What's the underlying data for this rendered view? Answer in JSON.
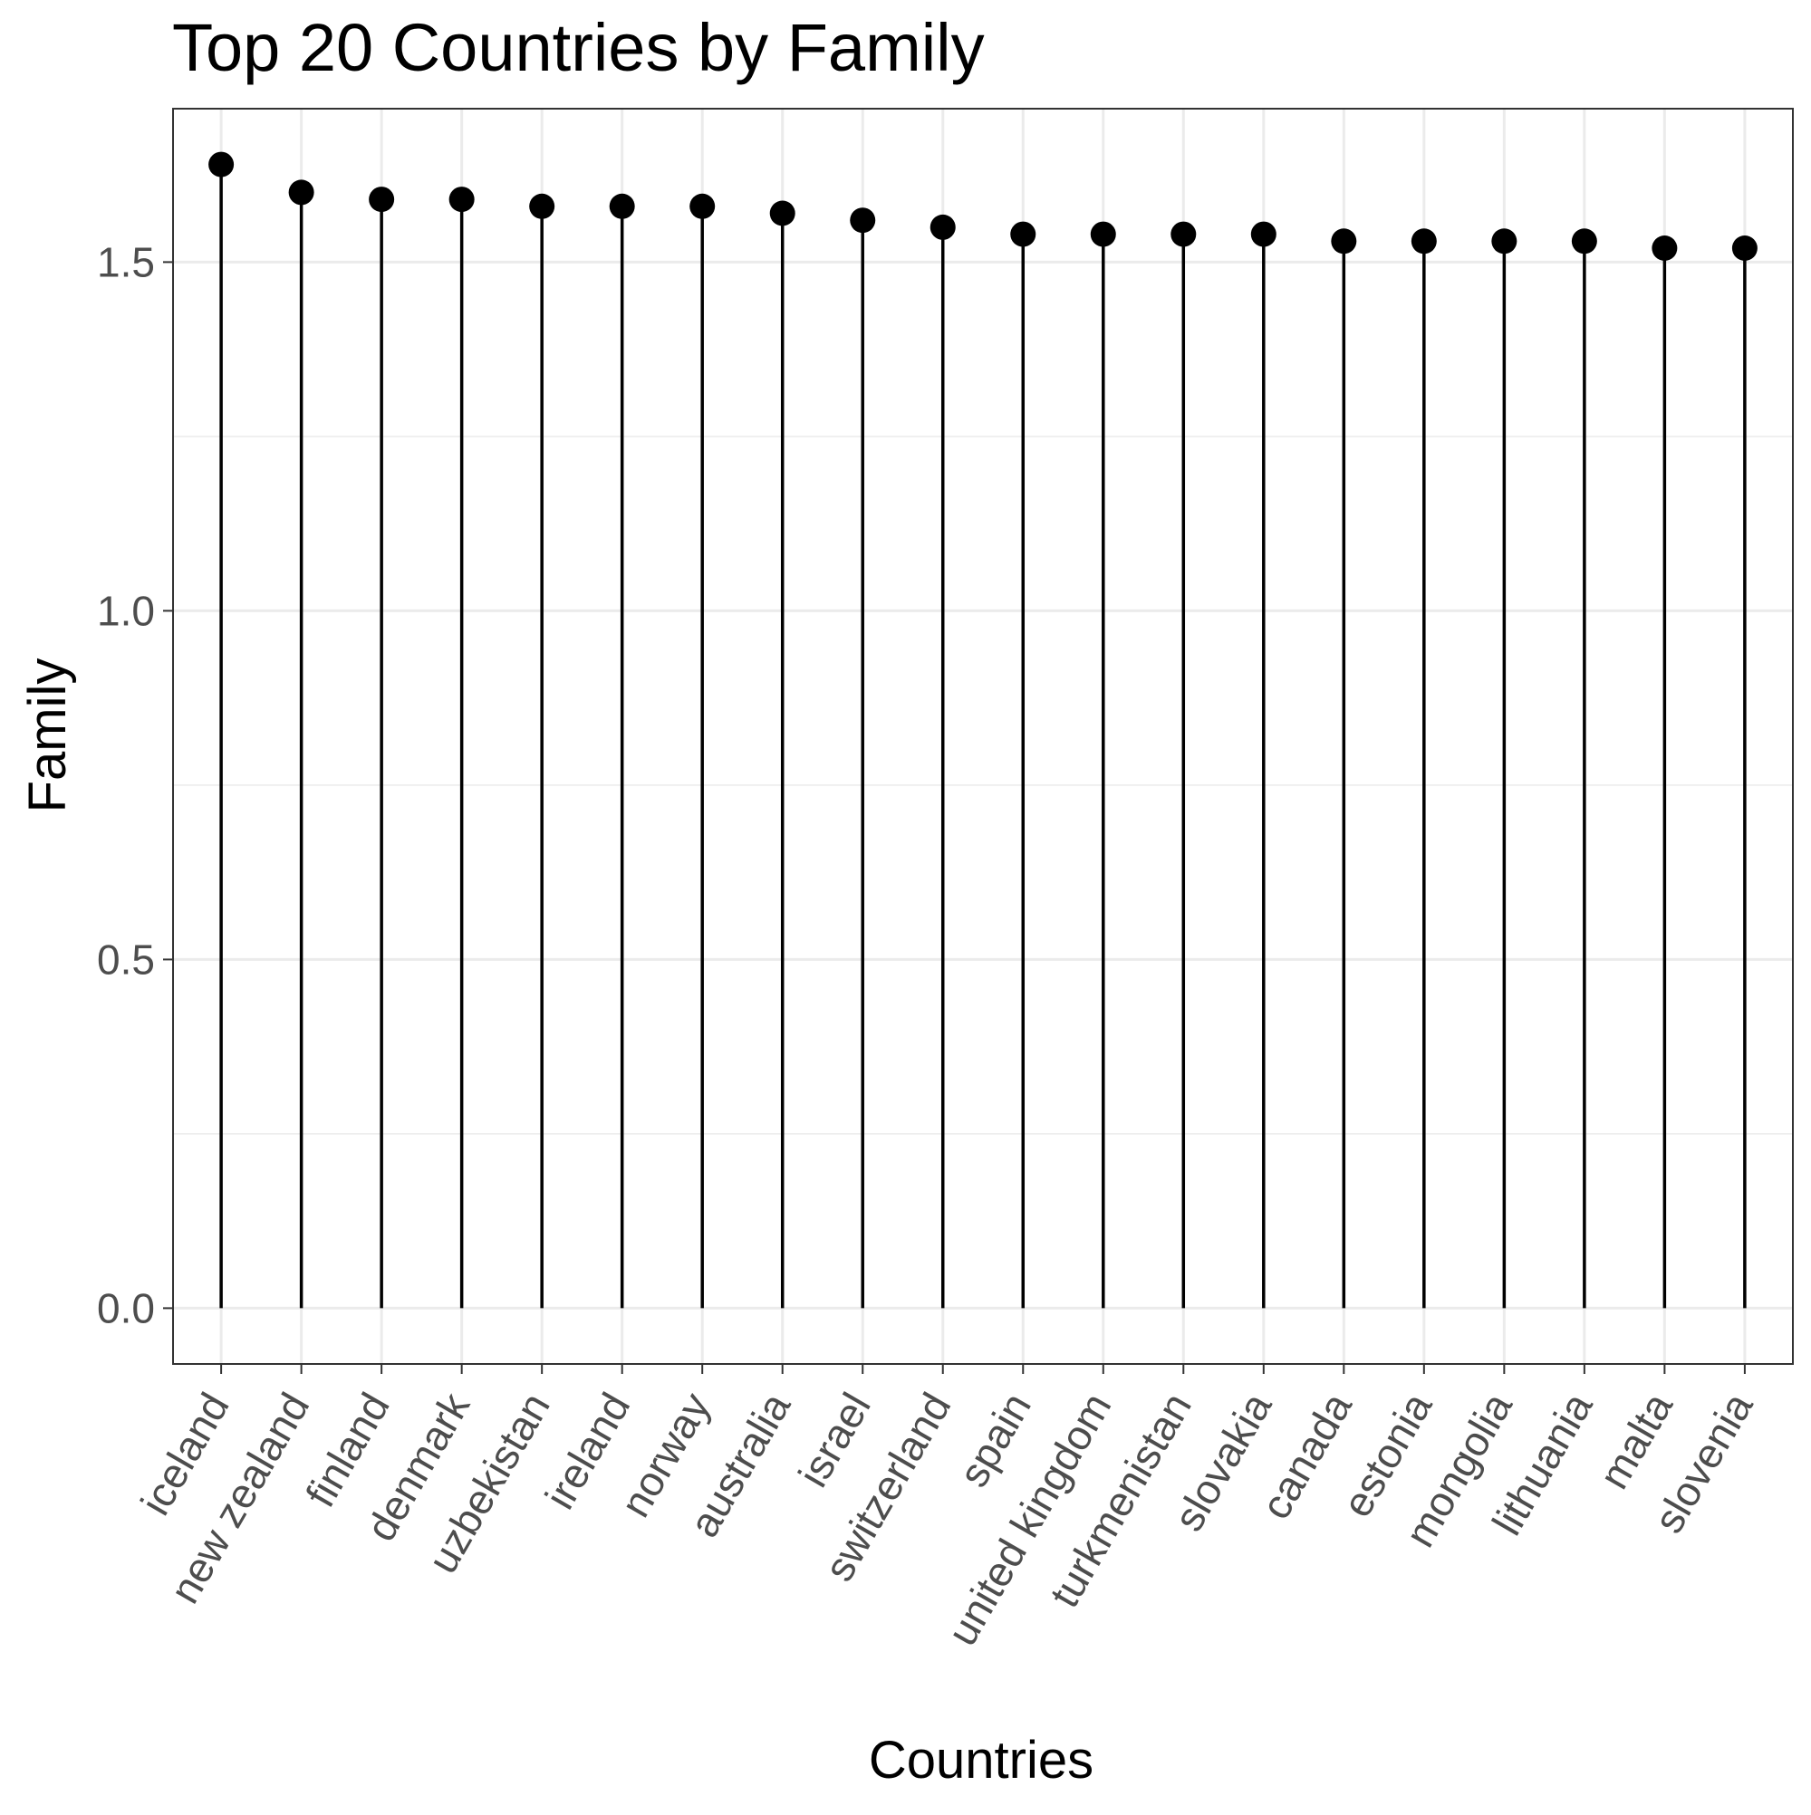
{
  "chart_data": {
    "type": "lollipop",
    "title": "Top 20 Countries by Family",
    "xlabel": "Countries",
    "ylabel": "Family",
    "categories": [
      "iceland",
      "new zealand",
      "finland",
      "denmark",
      "uzbekistan",
      "ireland",
      "norway",
      "australia",
      "israel",
      "switzerland",
      "spain",
      "united kingdom",
      "turkmenistan",
      "slovakia",
      "canada",
      "estonia",
      "mongolia",
      "lithuania",
      "malta",
      "slovenia"
    ],
    "values": [
      1.64,
      1.6,
      1.59,
      1.59,
      1.58,
      1.58,
      1.58,
      1.57,
      1.56,
      1.55,
      1.54,
      1.54,
      1.54,
      1.54,
      1.53,
      1.53,
      1.53,
      1.53,
      1.52,
      1.52
    ],
    "ylim": [
      -0.08,
      1.72
    ],
    "yticks": [
      0.0,
      0.5,
      1.0,
      1.5
    ],
    "ytick_labels": [
      "0.0",
      "0.5",
      "1.0",
      "1.5"
    ],
    "grid": true,
    "legend": "none",
    "colors": {
      "marker": "#000000",
      "panel_border": "#333333",
      "grid": "#ebebeb",
      "tick_label": "#4d4d4d",
      "text": "#000000"
    }
  }
}
